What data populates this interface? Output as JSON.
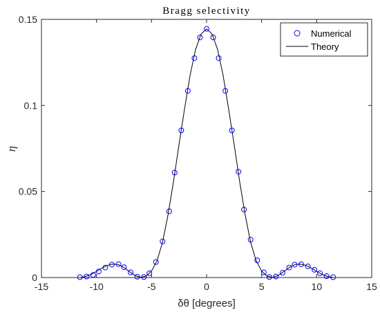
{
  "chart_data": {
    "type": "line",
    "title": "Bragg selectivity",
    "xlabel": "δθ [degrees]",
    "ylabel": "η",
    "xlim": [
      -15,
      15
    ],
    "ylim": [
      0,
      0.15
    ],
    "xticks": [
      -15,
      -10,
      -5,
      0,
      5,
      10,
      15
    ],
    "yticks": [
      0,
      0.05,
      0.1,
      0.15
    ],
    "xtick_labels": [
      "-15",
      "-10",
      "-5",
      "0",
      "5",
      "10",
      "15"
    ],
    "ytick_labels": [
      "0",
      "0.05",
      "0.1",
      "0.15"
    ],
    "grid": false,
    "legend": {
      "placement": "top-right",
      "entries": [
        "Numerical",
        "Theory"
      ]
    },
    "series": [
      {
        "name": "Numerical",
        "marker": "circle",
        "color": "#0000ff",
        "x": [
          -11.5,
          -10.9,
          -10.3,
          -9.8,
          -9.2,
          -8.6,
          -8.0,
          -7.5,
          -6.9,
          -6.3,
          -5.7,
          -5.2,
          -4.6,
          -4.0,
          -3.4,
          -2.9,
          -2.3,
          -1.7,
          -1.1,
          -0.6,
          0.0,
          0.6,
          1.1,
          1.7,
          2.3,
          2.9,
          3.4,
          4.0,
          4.6,
          5.2,
          5.7,
          6.3,
          6.9,
          7.5,
          8.0,
          8.6,
          9.2,
          9.8,
          10.3,
          10.9,
          11.5
        ],
        "y": [
          0.0002,
          0.0006,
          0.0015,
          0.0035,
          0.0058,
          0.0075,
          0.0078,
          0.006,
          0.003,
          0.0005,
          0.0003,
          0.0025,
          0.009,
          0.021,
          0.0385,
          0.061,
          0.0855,
          0.1085,
          0.1275,
          0.1395,
          0.1445,
          0.1395,
          0.1275,
          0.1085,
          0.0855,
          0.0615,
          0.0395,
          0.022,
          0.01,
          0.003,
          0.0003,
          0.0006,
          0.0028,
          0.0058,
          0.0075,
          0.0077,
          0.0065,
          0.0045,
          0.0025,
          0.0008,
          0.0002
        ]
      },
      {
        "name": "Theory",
        "color": "#000000",
        "x": [
          -11.5,
          -11.0,
          -10.5,
          -10.0,
          -9.5,
          -9.0,
          -8.5,
          -8.0,
          -7.5,
          -7.0,
          -6.5,
          -6.0,
          -5.5,
          -5.0,
          -4.5,
          -4.0,
          -3.5,
          -3.0,
          -2.5,
          -2.0,
          -1.5,
          -1.0,
          -0.5,
          0.0,
          0.5,
          1.0,
          1.5,
          2.0,
          2.5,
          3.0,
          3.5,
          4.0,
          4.5,
          5.0,
          5.5,
          6.0,
          6.5,
          7.0,
          7.5,
          8.0,
          8.5,
          9.0,
          9.5,
          10.0,
          10.5,
          11.0,
          11.5
        ],
        "y": [
          0.0,
          0.0006,
          0.0018,
          0.0036,
          0.0055,
          0.0071,
          0.0078,
          0.0075,
          0.0058,
          0.0034,
          0.0012,
          0.0001,
          0.0008,
          0.0038,
          0.0098,
          0.0205,
          0.0365,
          0.056,
          0.0775,
          0.098,
          0.1175,
          0.1325,
          0.1415,
          0.1445,
          0.1415,
          0.1325,
          0.1175,
          0.098,
          0.0775,
          0.056,
          0.0365,
          0.0205,
          0.0098,
          0.0038,
          0.0008,
          0.0001,
          0.0012,
          0.0034,
          0.0058,
          0.0075,
          0.0078,
          0.0071,
          0.0055,
          0.0036,
          0.0018,
          0.0006,
          0.0
        ]
      }
    ]
  }
}
